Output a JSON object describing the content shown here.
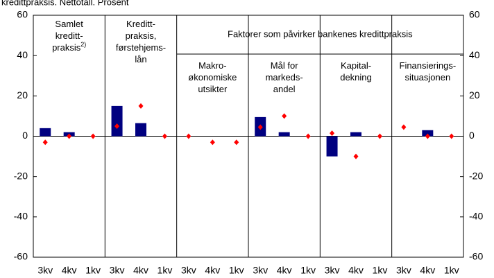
{
  "chart_data": {
    "type": "bar",
    "subtitle": "kredittpraksis. Nettotall. Prosent",
    "header": "Faktorer som påvirker bankenes kredittpraksis",
    "categories": [
      "3kv",
      "4kv",
      "1kv",
      "3kv",
      "4kv",
      "1kv",
      "3kv",
      "4kv",
      "1kv",
      "3kv",
      "4kv",
      "1kv",
      "3kv",
      "4kv",
      "1kv",
      "3kv",
      "4kv",
      "1kv"
    ],
    "groups": [
      {
        "lines": [
          "Samlet",
          "kreditt-",
          "praksis"
        ],
        "note": "2)"
      },
      {
        "lines": [
          "Kreditt-",
          "praksis,",
          "førstehjems-",
          "lån"
        ]
      },
      {
        "lines": [
          "Makro-",
          "økonomiske",
          "utsikter"
        ]
      },
      {
        "lines": [
          "Mål for",
          "markeds-",
          "andel"
        ]
      },
      {
        "lines": [
          "Kapital-",
          "dekning"
        ]
      },
      {
        "lines": [
          "Finansierings-",
          "situasjonen"
        ]
      }
    ],
    "series": [
      {
        "type": "bar",
        "color": "#000080",
        "values": [
          4,
          2,
          null,
          15,
          6.5,
          null,
          null,
          null,
          null,
          9.5,
          2,
          null,
          -10,
          2,
          null,
          null,
          3,
          null
        ]
      },
      {
        "type": "scatter",
        "color": "#ff0000",
        "values": [
          -3,
          0,
          0,
          5,
          15,
          0,
          0,
          -3,
          -3,
          4.5,
          10,
          0,
          1.5,
          -10,
          0,
          4.5,
          0,
          0
        ]
      }
    ],
    "ylim": [
      -60,
      60
    ],
    "yticks": [
      -60,
      -40,
      -20,
      0,
      20,
      40,
      60
    ],
    "y2lim": [
      -60,
      60
    ],
    "y2ticks": [
      -60,
      -40,
      -20,
      0,
      20,
      40,
      60
    ]
  }
}
